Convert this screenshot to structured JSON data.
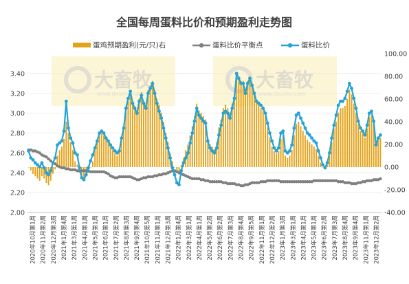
{
  "chart_data": {
    "type": "bar+line",
    "title": "全国每周蛋料比价和预期盈利走势图",
    "legend": [
      {
        "name": "蛋鸡预期盈利(元/只)右",
        "color": "#E3A21A",
        "marker": "bar"
      },
      {
        "name": "蛋料比价平衡点",
        "color": "#7F7F7F",
        "marker": "line"
      },
      {
        "name": "蛋料比价",
        "color": "#23A3D6",
        "marker": "line"
      }
    ],
    "watermark": {
      "brand": "大畜牧",
      "url": "www.dxumu.com"
    },
    "y_left": {
      "min": 2.0,
      "max": 3.6,
      "ticks": [
        "2.00",
        "2.20",
        "2.40",
        "2.60",
        "2.80",
        "3.00",
        "3.20",
        "3.40"
      ]
    },
    "y_right": {
      "min": -40,
      "max": 100,
      "ticks": [
        "-40.00",
        "-20.00",
        "0.00",
        "20.00",
        "40.00",
        "60.00",
        "80.00",
        "100.00"
      ]
    },
    "x_labels": [
      "2020年10月第1周",
      "2020年11月第2周",
      "2020年12月第3周",
      "2021年1月第4周",
      "2021年3月第1周",
      "2021年4月第1周",
      "2021年5月第1周",
      "2021年6月第1周",
      "2021年7月第2周",
      "2021年8月第3周",
      "2021年9月第4周",
      "2021年10月第5周",
      "2021年11月第1周",
      "2021年12月第3周",
      "2022年1月第4周",
      "2022年3月第1周",
      "2022年4月第1周",
      "2022年5月第2周",
      "2022年6月第2周",
      "2022年7月第3周",
      "2022年8月第4周",
      "2022年9月第5周",
      "2022年11月第1周",
      "2022年12月第2周",
      "2023年1月第3周",
      "2023年3月第1周",
      "2023年4月第1周",
      "2023年5月第1周",
      "2023年6月第2周",
      "2023年7月第3周",
      "2023年8月第4周",
      "2023年9月第4周",
      "2023年11月第1周",
      "2023年12月第2周"
    ],
    "series": [
      {
        "name": "蛋料比价",
        "axis": "left",
        "values": [
          2.62,
          2.55,
          2.53,
          2.5,
          2.48,
          2.46,
          2.5,
          2.45,
          2.4,
          2.38,
          2.42,
          2.5,
          2.55,
          2.68,
          2.7,
          2.72,
          2.82,
          3.12,
          2.85,
          2.75,
          2.7,
          2.6,
          2.58,
          2.45,
          2.35,
          2.33,
          2.38,
          2.45,
          2.52,
          2.58,
          2.65,
          2.72,
          2.8,
          2.82,
          2.8,
          2.75,
          2.72,
          2.68,
          2.65,
          2.62,
          2.6,
          2.62,
          2.75,
          2.85,
          3.05,
          3.15,
          3.22,
          3.1,
          3.05,
          3.0,
          3.12,
          3.18,
          3.1,
          3.05,
          3.2,
          3.25,
          3.3,
          3.2,
          3.1,
          3.02,
          2.95,
          2.85,
          2.75,
          2.65,
          2.55,
          2.45,
          2.38,
          2.3,
          2.28,
          2.42,
          2.5,
          2.55,
          2.6,
          2.7,
          2.8,
          2.92,
          3.05,
          2.98,
          2.95,
          2.92,
          2.9,
          2.72,
          2.65,
          2.62,
          2.6,
          2.65,
          2.78,
          2.88,
          3.0,
          3.02,
          3.0,
          2.95,
          3.05,
          3.15,
          3.4,
          3.35,
          3.3,
          3.3,
          3.2,
          3.3,
          3.35,
          3.28,
          3.2,
          3.12,
          3.1,
          3.08,
          3.05,
          3.0,
          2.9,
          2.8,
          2.72,
          2.65,
          2.62,
          2.65,
          2.8,
          2.82,
          2.62,
          2.6,
          2.62,
          2.68,
          2.85,
          2.98,
          3.0,
          2.95,
          2.9,
          2.85,
          2.8,
          2.78,
          2.75,
          2.72,
          2.7,
          2.62,
          2.55,
          2.48,
          2.45,
          2.5,
          2.6,
          2.75,
          2.88,
          2.98,
          3.08,
          3.12,
          3.12,
          3.15,
          3.22,
          3.3,
          3.25,
          3.15,
          3.05,
          2.92,
          2.85,
          2.82,
          2.78,
          2.88,
          3.0,
          3.02,
          2.92,
          2.68,
          2.75,
          2.78
        ]
      },
      {
        "name": "蛋料比价平衡点",
        "axis": "left",
        "values": [
          2.63,
          2.63,
          2.62,
          2.62,
          2.61,
          2.6,
          2.58,
          2.57,
          2.56,
          2.54,
          2.52,
          2.5,
          2.49,
          2.47,
          2.46,
          2.45,
          2.45,
          2.44,
          2.44,
          2.43,
          2.43,
          2.43,
          2.42,
          2.42,
          2.42,
          2.42,
          2.42,
          2.42,
          2.41,
          2.41,
          2.41,
          2.41,
          2.41,
          2.41,
          2.41,
          2.4,
          2.39,
          2.37,
          2.36,
          2.35,
          2.35,
          2.36,
          2.36,
          2.36,
          2.36,
          2.36,
          2.36,
          2.35,
          2.34,
          2.33,
          2.33,
          2.34,
          2.35,
          2.35,
          2.36,
          2.36,
          2.36,
          2.37,
          2.37,
          2.38,
          2.38,
          2.39,
          2.39,
          2.4,
          2.41,
          2.42,
          2.42,
          2.41,
          2.4,
          2.39,
          2.38,
          2.37,
          2.36,
          2.35,
          2.34,
          2.34,
          2.34,
          2.34,
          2.33,
          2.33,
          2.32,
          2.32,
          2.31,
          2.31,
          2.31,
          2.31,
          2.31,
          2.31,
          2.3,
          2.3,
          2.29,
          2.29,
          2.29,
          2.29,
          2.28,
          2.28,
          2.27,
          2.27,
          2.28,
          2.28,
          2.29,
          2.3,
          2.3,
          2.3,
          2.3,
          2.31,
          2.31,
          2.31,
          2.32,
          2.32,
          2.32,
          2.32,
          2.32,
          2.32,
          2.31,
          2.31,
          2.31,
          2.31,
          2.31,
          2.31,
          2.31,
          2.31,
          2.31,
          2.31,
          2.31,
          2.31,
          2.31,
          2.31,
          2.31,
          2.32,
          2.32,
          2.32,
          2.32,
          2.32,
          2.32,
          2.32,
          2.32,
          2.32,
          2.32,
          2.32,
          2.31,
          2.31,
          2.31,
          2.3,
          2.3,
          2.3,
          2.29,
          2.29,
          2.29,
          2.3,
          2.3,
          2.31,
          2.31,
          2.32,
          2.32,
          2.32,
          2.33,
          2.33,
          2.33,
          2.34
        ]
      },
      {
        "name": "蛋鸡预期盈利(元/只)右",
        "axis": "right",
        "values": [
          0,
          -3,
          -6,
          -8,
          -10,
          -12,
          -8,
          -10,
          -14,
          -16,
          -12,
          -6,
          -2,
          10,
          15,
          18,
          25,
          40,
          30,
          22,
          15,
          5,
          2,
          -5,
          -10,
          -12,
          -8,
          -5,
          0,
          5,
          15,
          22,
          28,
          30,
          28,
          25,
          22,
          18,
          15,
          12,
          10,
          14,
          25,
          33,
          50,
          58,
          65,
          55,
          52,
          48,
          60,
          66,
          58,
          55,
          68,
          72,
          76,
          68,
          60,
          55,
          48,
          40,
          30,
          22,
          12,
          5,
          0,
          -5,
          -5,
          2,
          8,
          15,
          20,
          28,
          36,
          45,
          56,
          50,
          48,
          45,
          42,
          26,
          20,
          18,
          16,
          22,
          35,
          42,
          52,
          55,
          52,
          48,
          56,
          64,
          84,
          80,
          76,
          76,
          68,
          76,
          80,
          74,
          66,
          58,
          55,
          52,
          50,
          45,
          35,
          26,
          18,
          14,
          12,
          14,
          25,
          28,
          10,
          8,
          10,
          15,
          28,
          38,
          40,
          36,
          32,
          28,
          24,
          22,
          20,
          18,
          16,
          10,
          4,
          0,
          -2,
          2,
          10,
          22,
          34,
          40,
          48,
          52,
          52,
          54,
          60,
          68,
          64,
          56,
          48,
          38,
          32,
          30,
          26,
          34,
          44,
          46,
          38,
          18,
          24,
          26
        ]
      }
    ]
  }
}
